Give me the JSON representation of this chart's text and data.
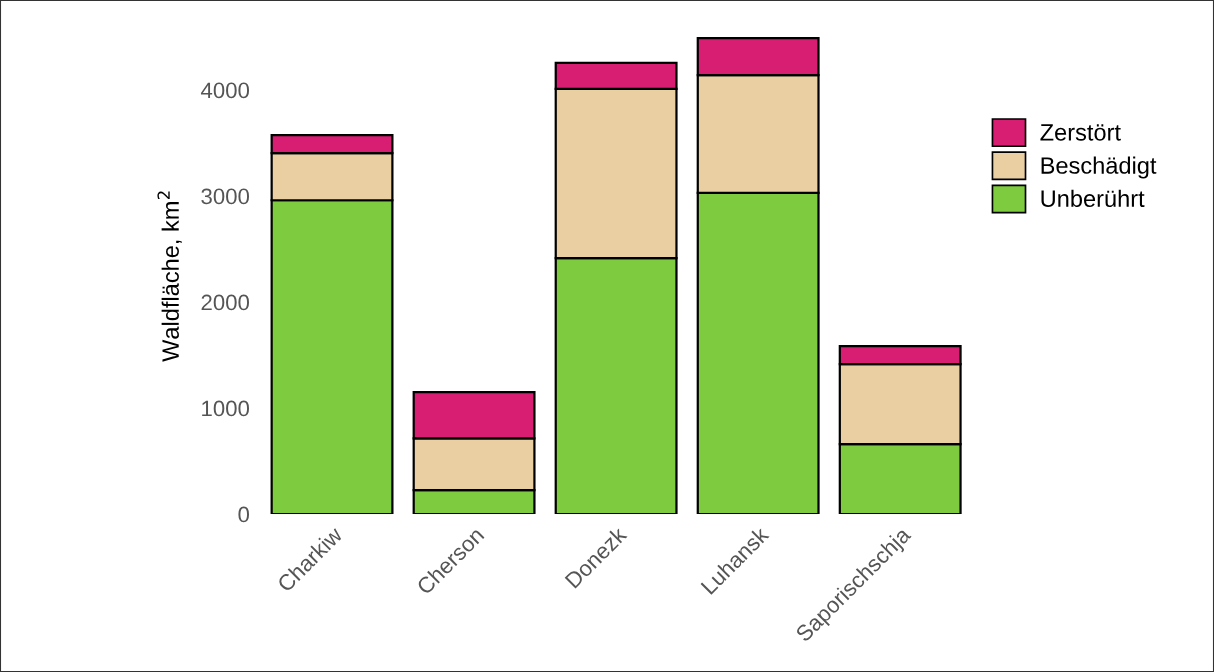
{
  "chart_data": {
    "type": "bar",
    "stacked": true,
    "ylabel": "Waldfläche, km$^{2}$",
    "categories": [
      "Charkiw",
      "Cherson",
      "Donezk",
      "Luhansk",
      "Saporischschja"
    ],
    "series": [
      {
        "name": "Unberührt",
        "color": "#7ecb3f",
        "values": [
          2960,
          225,
          2415,
          3030,
          660
        ]
      },
      {
        "name": "Beschädigt",
        "color": "#e9cfa2",
        "values": [
          445,
          490,
          1595,
          1110,
          755
        ]
      },
      {
        "name": "Zerstört",
        "color": "#d81e73",
        "values": [
          170,
          435,
          245,
          350,
          170
        ]
      }
    ],
    "ylim": [
      0,
      4500
    ],
    "yticks": [
      0,
      1000,
      2000,
      3000,
      4000
    ],
    "grid": false,
    "legend": "right"
  }
}
